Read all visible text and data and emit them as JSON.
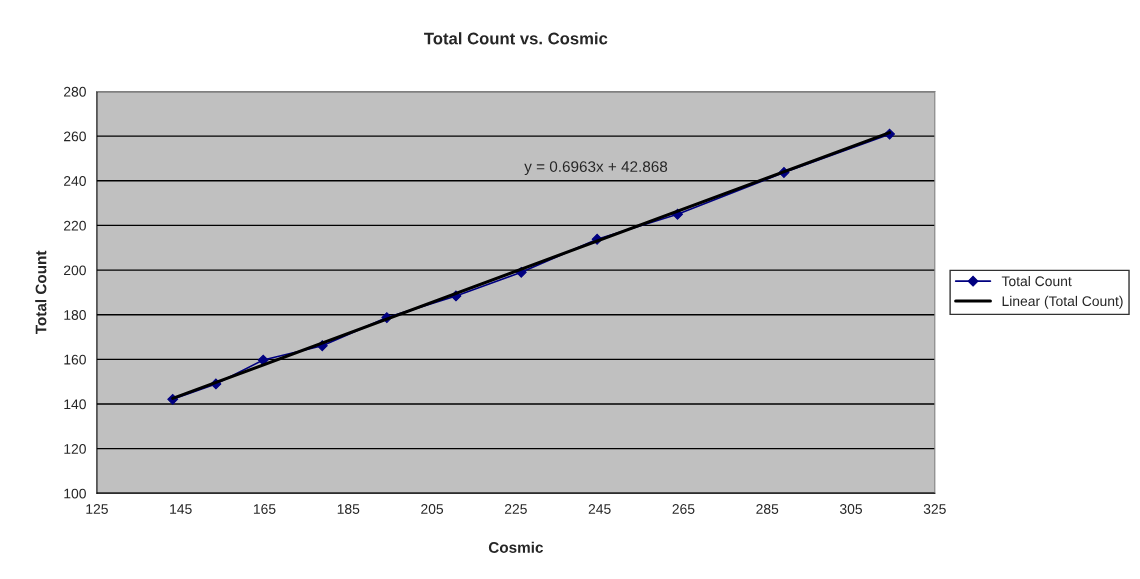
{
  "chart_data": {
    "type": "line",
    "title": "Total Count vs. Cosmic",
    "xlabel": "Cosmic",
    "ylabel": "Total Count",
    "series": [
      {
        "name": "Total Count",
        "color": "#000080",
        "marker": "diamond",
        "x": [
          143.1,
          153.4,
          164.7,
          178.8,
          194.2,
          210.7,
          226.3,
          244.4,
          263.6,
          289.0,
          314.2
        ],
        "values": [
          142.1,
          149.0,
          159.7,
          166.1,
          178.7,
          188.4,
          199.0,
          213.8,
          225.0,
          243.7,
          260.9
        ]
      },
      {
        "name": "Linear (Total Count)",
        "color": "#000000",
        "marker": "none",
        "x": [
          143.1,
          314.2
        ],
        "values": [
          142.5,
          261.6
        ]
      }
    ],
    "annotations": [
      "y = 0.6963x + 42.868"
    ],
    "xlim": [
      125,
      325
    ],
    "xticks": [
      125,
      145,
      165,
      185,
      205,
      225,
      245,
      265,
      285,
      305,
      325
    ],
    "ylim": [
      100,
      280
    ],
    "yticks": [
      100,
      120,
      140,
      160,
      180,
      200,
      220,
      240,
      260,
      280
    ],
    "grid": "y",
    "legend": "right"
  }
}
